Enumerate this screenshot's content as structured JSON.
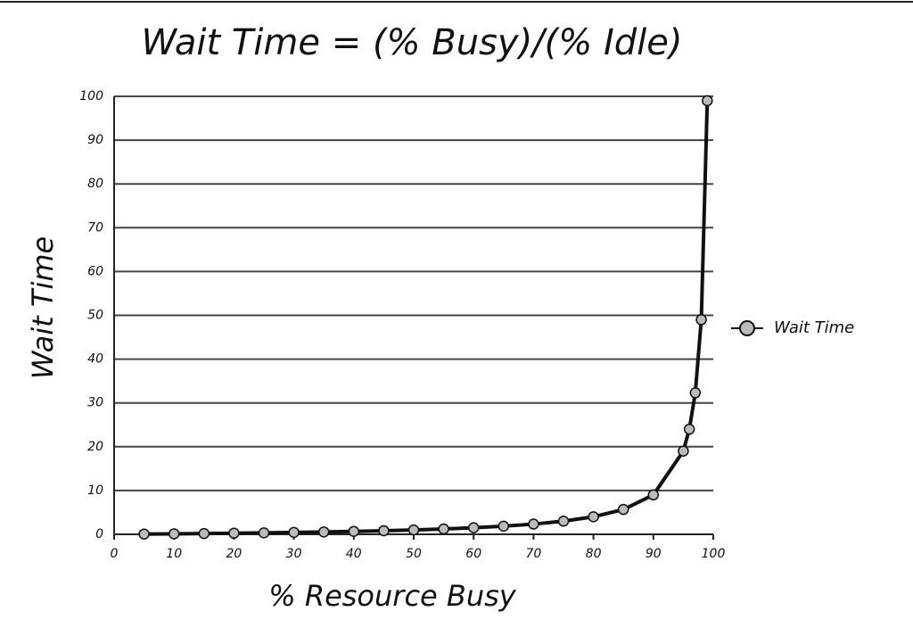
{
  "chart_data": {
    "type": "line",
    "title": "Wait Time = (% Busy)/(% Idle)",
    "x_label": "% Resource Busy",
    "y_label": "Wait Time",
    "x": [
      5,
      10,
      15,
      20,
      25,
      30,
      35,
      40,
      45,
      50,
      55,
      60,
      65,
      70,
      75,
      80,
      85,
      90,
      95,
      96,
      97,
      98,
      99
    ],
    "series": [
      {
        "name": "Wait Time",
        "color": "#bbbbbb",
        "values": [
          0.05,
          0.11,
          0.18,
          0.25,
          0.33,
          0.43,
          0.54,
          0.67,
          0.82,
          1,
          1.22,
          1.5,
          1.86,
          2.33,
          3,
          4,
          5.67,
          9,
          19,
          24,
          32.3,
          49,
          99
        ]
      }
    ],
    "xlim": [
      0,
      100
    ],
    "xticks": [
      0,
      10,
      20,
      30,
      40,
      50,
      60,
      70,
      80,
      90,
      100
    ],
    "ylim": [
      0,
      100
    ],
    "yticks": [
      0,
      10,
      20,
      30,
      40,
      50,
      60,
      70,
      80,
      90,
      100
    ],
    "grid": true,
    "legend": "right"
  }
}
